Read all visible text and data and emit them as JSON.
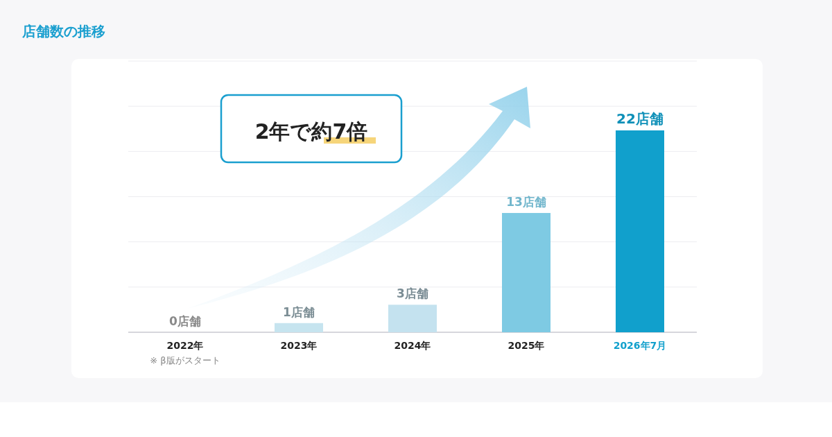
{
  "chart_data": {
    "type": "bar",
    "title": "店舗数の推移",
    "categories": [
      "2022年",
      "2023年",
      "2024年",
      "2025年",
      "2026年7月"
    ],
    "values": [
      0,
      1,
      3,
      13,
      22
    ],
    "colors": [
      "#c9e3ee",
      "#c6e4ef",
      "#c4e2ef",
      "#7ecae3",
      "#11a0cc"
    ],
    "value_labels": [
      "0店舗",
      "1店舗",
      "3店舗",
      "13店舗",
      "22店舗"
    ],
    "grid": "y",
    "annotations": [
      "2年で約7倍",
      "※ β版がスタート"
    ]
  }
}
